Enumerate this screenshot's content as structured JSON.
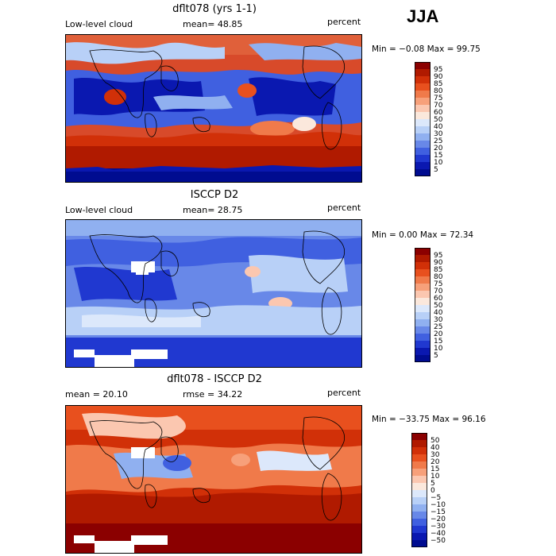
{
  "season": "JJA",
  "panels": [
    {
      "title": "dflt078 (yrs 1-1)",
      "left_label": "Low-level cloud",
      "center_label": "mean=  48.85",
      "right_label": "percent",
      "minmax": "Min =  −0.08 Max =  99.75",
      "colorbar": {
        "labels": [
          "95",
          "90",
          "85",
          "80",
          "75",
          "70",
          "60",
          "50",
          "40",
          "30",
          "25",
          "20",
          "15",
          "10",
          "5"
        ],
        "colors": [
          "#8b0000",
          "#b01a00",
          "#d13008",
          "#e8501e",
          "#f07a4a",
          "#f7a07a",
          "#fbc7b0",
          "#fbe8dc",
          "#dce8fb",
          "#b8d0f7",
          "#90b0f0",
          "#6888e8",
          "#4060e0",
          "#2038d0",
          "#0a18b0",
          "#000c90"
        ]
      }
    },
    {
      "title": "ISCCP D2",
      "left_label": "Low-level cloud",
      "center_label": "mean=  28.75",
      "right_label": "percent",
      "minmax": "Min =   0.00 Max =  72.34",
      "colorbar": {
        "labels": [
          "95",
          "90",
          "85",
          "80",
          "75",
          "70",
          "60",
          "50",
          "40",
          "30",
          "25",
          "20",
          "15",
          "10",
          "5"
        ],
        "colors": [
          "#8b0000",
          "#b01a00",
          "#d13008",
          "#e8501e",
          "#f07a4a",
          "#f7a07a",
          "#fbc7b0",
          "#fbe8dc",
          "#dce8fb",
          "#b8d0f7",
          "#90b0f0",
          "#6888e8",
          "#4060e0",
          "#2038d0",
          "#0a18b0",
          "#000c90"
        ]
      }
    },
    {
      "title": "dflt078 - ISCCP D2",
      "left_label": "mean =  20.10",
      "center_label": "rmse =  34.22",
      "right_label": "percent",
      "minmax": "Min = −33.75 Max =  96.16",
      "colorbar": {
        "labels": [
          "50",
          "40",
          "30",
          "20",
          "15",
          "10",
          "5",
          "0",
          "−5",
          "−10",
          "−15",
          "−20",
          "−30",
          "−40",
          "−50"
        ],
        "colors": [
          "#8b0000",
          "#b01a00",
          "#d13008",
          "#e8501e",
          "#f07a4a",
          "#f7a07a",
          "#fbc7b0",
          "#fbe8dc",
          "#dce8fb",
          "#b8d0f7",
          "#90b0f0",
          "#6888e8",
          "#4060e0",
          "#2038d0",
          "#0a18b0",
          "#000c90"
        ]
      }
    }
  ],
  "chart_data": {
    "type": "heatmap",
    "maps": [
      {
        "name": "dflt078 (yrs 1-1)",
        "variable": "Low-level cloud",
        "units": "percent",
        "mean": 48.85,
        "min": -0.08,
        "max": 99.75,
        "levels": [
          5,
          10,
          15,
          20,
          25,
          30,
          40,
          50,
          60,
          70,
          75,
          80,
          85,
          90,
          95
        ]
      },
      {
        "name": "ISCCP D2",
        "variable": "Low-level cloud",
        "units": "percent",
        "mean": 28.75,
        "min": 0.0,
        "max": 72.34,
        "levels": [
          5,
          10,
          15,
          20,
          25,
          30,
          40,
          50,
          60,
          70,
          75,
          80,
          85,
          90,
          95
        ]
      },
      {
        "name": "dflt078 - ISCCP D2",
        "units": "percent",
        "mean": 20.1,
        "rmse": 34.22,
        "min": -33.75,
        "max": 96.16,
        "levels": [
          -50,
          -40,
          -30,
          -20,
          -15,
          -10,
          -5,
          0,
          5,
          10,
          15,
          20,
          30,
          40,
          50
        ]
      }
    ]
  }
}
